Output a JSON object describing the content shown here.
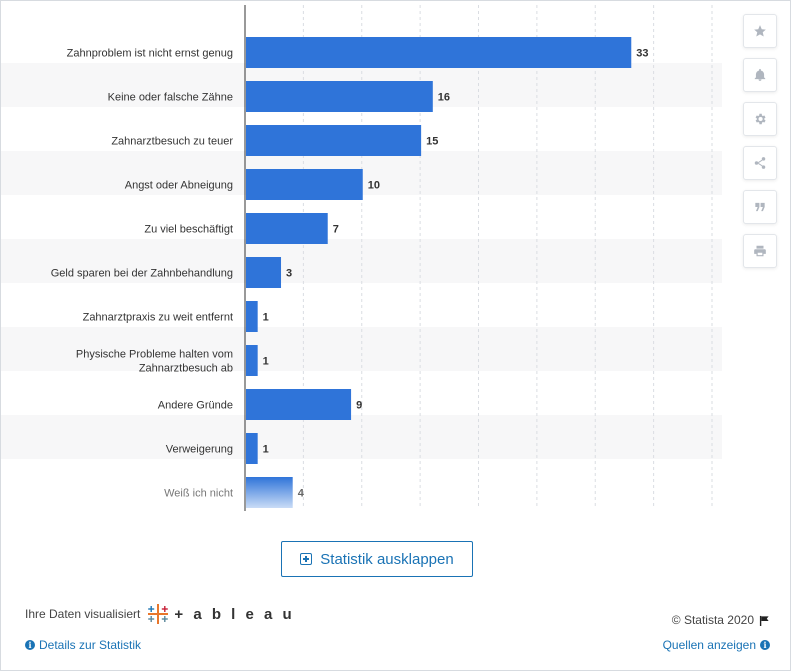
{
  "chart_data": {
    "type": "bar",
    "orientation": "horizontal",
    "categories": [
      "Zahnproblem ist nicht ernst genug",
      "Keine oder falsche Zähne",
      "Zahnarztbesuch zu teuer",
      "Angst oder Abneigung",
      "Zu viel beschäftigt",
      "Geld sparen bei der Zahnbehandlung",
      "Zahnarztpraxis zu weit entfernt",
      "Physische Probleme halten vom Zahnarztbesuch ab",
      "Andere Gründe",
      "Verweigerung",
      "Weiß ich nicht"
    ],
    "values": [
      33,
      16,
      15,
      10,
      7,
      3,
      1,
      1,
      9,
      1,
      4
    ],
    "xlim": [
      0,
      40
    ],
    "grid": true,
    "bar_color": "#2f74d9"
  },
  "toolbar": {
    "icons": [
      "star-icon",
      "bell-icon",
      "gear-icon",
      "share-icon",
      "quote-icon",
      "print-icon"
    ]
  },
  "expand_button": {
    "label": "Statistik ausklappen"
  },
  "footer": {
    "viz_credit": "Ihre Daten visualisiert",
    "tableau_word": "+ a b l e a u",
    "copyright": "© Statista 2020",
    "details_link": "Details zur Statistik",
    "sources_link": "Quellen anzeigen"
  }
}
